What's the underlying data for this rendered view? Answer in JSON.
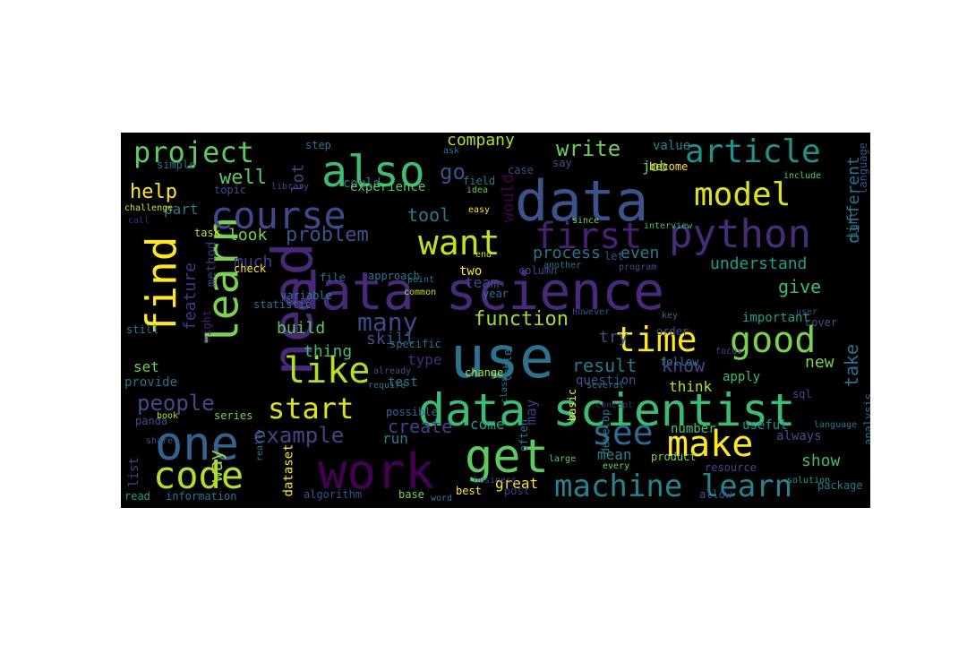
{
  "figure": {
    "background": "#000000",
    "colormap": "viridis",
    "words": [
      {
        "text": "data science",
        "color": "#472a7a"
      },
      {
        "text": "data",
        "color": "#3b528b"
      },
      {
        "text": "use",
        "color": "#2c728e"
      },
      {
        "text": "data scientist",
        "color": "#3cbb75"
      },
      {
        "text": "work",
        "color": "#440154"
      },
      {
        "text": "one",
        "color": "#33628d"
      },
      {
        "text": "need",
        "color": "#482878"
      },
      {
        "text": "also",
        "color": "#3dbc74"
      },
      {
        "text": "python",
        "color": "#472c7a"
      },
      {
        "text": "find",
        "color": "#fde725"
      },
      {
        "text": "learn",
        "color": "#7ad151"
      },
      {
        "text": "course",
        "color": "#3e4989"
      },
      {
        "text": "want",
        "color": "#c2df23"
      },
      {
        "text": "like",
        "color": "#b5de2b"
      },
      {
        "text": "get",
        "color": "#5ec962"
      },
      {
        "text": "make",
        "color": "#fde725"
      },
      {
        "text": "see",
        "color": "#31688e"
      },
      {
        "text": "time",
        "color": "#fde725"
      },
      {
        "text": "good",
        "color": "#7ad151"
      },
      {
        "text": "code",
        "color": "#b5de2b"
      },
      {
        "text": "model",
        "color": "#dde318"
      },
      {
        "text": "first",
        "color": "#482173"
      },
      {
        "text": "article",
        "color": "#21918c"
      },
      {
        "text": "project",
        "color": "#5ec962"
      },
      {
        "text": "machine learn",
        "color": "#26828e"
      },
      {
        "text": "start",
        "color": "#dde318"
      },
      {
        "text": "many",
        "color": "#3e4a89"
      },
      {
        "text": "go",
        "color": "#3b528b"
      },
      {
        "text": "example",
        "color": "#414487"
      },
      {
        "text": "people",
        "color": "#3e4c8a"
      },
      {
        "text": "function",
        "color": "#a0da39"
      },
      {
        "text": "write",
        "color": "#6ccd5a"
      },
      {
        "text": "company",
        "color": "#b5de2b"
      },
      {
        "text": "well",
        "color": "#5ec962"
      },
      {
        "text": "help",
        "color": "#fde725"
      },
      {
        "text": "problem",
        "color": "#3b528b"
      },
      {
        "text": "tool",
        "color": "#2a788e"
      },
      {
        "text": "look",
        "color": "#7ad151"
      },
      {
        "text": "different",
        "color": "#2c728e"
      },
      {
        "text": "take",
        "color": "#2c728e"
      },
      {
        "text": "create",
        "color": "#414487"
      },
      {
        "text": "way",
        "color": "#a0da39"
      },
      {
        "text": "show",
        "color": "#3dbc74"
      },
      {
        "text": "new",
        "color": "#7ad151"
      },
      {
        "text": "give",
        "color": "#3dbc74"
      },
      {
        "text": "result",
        "color": "#2a788e"
      },
      {
        "text": "know",
        "color": "#3e4a89"
      },
      {
        "text": "try",
        "color": "#3b528b"
      },
      {
        "text": "process",
        "color": "#2c728e"
      },
      {
        "text": "even",
        "color": "#2a788e"
      },
      {
        "text": "understand",
        "color": "#1f9e89"
      },
      {
        "text": "build",
        "color": "#5ec962"
      },
      {
        "text": "skill",
        "color": "#3b528b"
      },
      {
        "text": "thing",
        "color": "#3dbc74"
      },
      {
        "text": "much",
        "color": "#443a83"
      },
      {
        "text": "feature",
        "color": "#443983"
      },
      {
        "text": "part",
        "color": "#2a788e"
      },
      {
        "text": "team",
        "color": "#3e4989"
      },
      {
        "text": "two",
        "color": "#fde725"
      },
      {
        "text": "lot",
        "color": "#3e4989"
      },
      {
        "text": "would",
        "color": "#440154"
      },
      {
        "text": "run",
        "color": "#287c8e"
      },
      {
        "text": "set",
        "color": "#6ece58"
      },
      {
        "text": "list",
        "color": "#3e4989"
      },
      {
        "text": "type",
        "color": "#472d7b"
      },
      {
        "text": "mean",
        "color": "#26828e"
      },
      {
        "text": "come",
        "color": "#1fa187"
      },
      {
        "text": "great",
        "color": "#fde725"
      },
      {
        "text": "may",
        "color": "#443983"
      },
      {
        "text": "think",
        "color": "#b5de2b"
      },
      {
        "text": "job",
        "color": "#7ad151"
      },
      {
        "text": "value",
        "color": "#26828e"
      },
      {
        "text": "could",
        "color": "#2a788e"
      },
      {
        "text": "experience",
        "color": "#5ec962"
      },
      {
        "text": "provide",
        "color": "#2c728e"
      },
      {
        "text": "might",
        "color": "#482173"
      },
      {
        "text": "method",
        "color": "#453781"
      },
      {
        "text": "test",
        "color": "#2a788e"
      },
      {
        "text": "question",
        "color": "#3b528b"
      },
      {
        "text": "important",
        "color": "#1f9e89"
      },
      {
        "text": "apply",
        "color": "#3dbc74"
      },
      {
        "text": "follow",
        "color": "#2a788e"
      },
      {
        "text": "number",
        "color": "#4ac16d"
      },
      {
        "text": "useful",
        "color": "#21918c"
      },
      {
        "text": "always",
        "color": "#3b528b"
      },
      {
        "text": "package",
        "color": "#2a788e"
      },
      {
        "text": "analysis",
        "color": "#2c728e"
      },
      {
        "text": "check",
        "color": "#fde725"
      },
      {
        "text": "statistic",
        "color": "#2c728e"
      },
      {
        "text": "variable",
        "color": "#2a788e"
      },
      {
        "text": "approach",
        "color": "#2a788e"
      },
      {
        "text": "step",
        "color": "#2a788e"
      },
      {
        "text": "simple",
        "color": "#2c728e"
      },
      {
        "text": "topic",
        "color": "#3e4c8a"
      },
      {
        "text": "challenge",
        "color": "#d2e21b"
      },
      {
        "text": "call",
        "color": "#472d7b"
      },
      {
        "text": "task",
        "color": "#c2df23"
      },
      {
        "text": "still",
        "color": "#2a788e"
      },
      {
        "text": "panda",
        "color": "#3b528b"
      },
      {
        "text": "book",
        "color": "#c2df23"
      },
      {
        "text": "series",
        "color": "#7ad151"
      },
      {
        "text": "read",
        "color": "#1f9e89"
      },
      {
        "text": "information",
        "color": "#2a788e"
      },
      {
        "text": "dataset",
        "color": "#fde725"
      },
      {
        "text": "algorithm",
        "color": "#3b528b"
      },
      {
        "text": "base",
        "color": "#7ad151"
      },
      {
        "text": "best",
        "color": "#fde725"
      },
      {
        "text": "post",
        "color": "#443983"
      },
      {
        "text": "word",
        "color": "#2a788e"
      },
      {
        "text": "solution",
        "color": "#1f9e89"
      },
      {
        "text": "resource",
        "color": "#3e4c8a"
      },
      {
        "text": "product",
        "color": "#7ad151"
      },
      {
        "text": "every",
        "color": "#7ad151"
      },
      {
        "text": "large",
        "color": "#5ec962"
      },
      {
        "text": "often",
        "color": "#2c728e"
      },
      {
        "text": "develop",
        "color": "#2a788e"
      },
      {
        "text": "possible",
        "color": "#31688e"
      },
      {
        "text": "basic",
        "color": "#fde725"
      },
      {
        "text": "concept",
        "color": "#482878"
      },
      {
        "text": "allow",
        "color": "#3b528b"
      },
      {
        "text": "sql",
        "color": "#3e4c8a"
      },
      {
        "text": "focus",
        "color": "#3e4c8a"
      },
      {
        "text": "order",
        "color": "#3b528b"
      },
      {
        "text": "however",
        "color": "#3b528b"
      },
      {
        "text": "key",
        "color": "#2c728e"
      },
      {
        "text": "user",
        "color": "#414487"
      },
      {
        "text": "cover",
        "color": "#3b528b"
      },
      {
        "text": "common",
        "color": "#c2df23"
      },
      {
        "text": "file",
        "color": "#2c728e"
      },
      {
        "text": "point",
        "color": "#2a788e"
      },
      {
        "text": "column",
        "color": "#3e4989"
      },
      {
        "text": "end",
        "color": "#c2df23"
      },
      {
        "text": "year",
        "color": "#2c728e"
      },
      {
        "text": "another",
        "color": "#2c728e"
      },
      {
        "text": "program",
        "color": "#3b528b"
      },
      {
        "text": "let",
        "color": "#3b528b"
      },
      {
        "text": "since",
        "color": "#7ad151"
      },
      {
        "text": "interview",
        "color": "#3dbc74"
      },
      {
        "text": "idea",
        "color": "#5ec962"
      },
      {
        "text": "easy",
        "color": "#fde725"
      },
      {
        "text": "ask",
        "color": "#2c728e"
      },
      {
        "text": "field",
        "color": "#2a788e"
      },
      {
        "text": "case",
        "color": "#3b528b"
      },
      {
        "text": "say",
        "color": "#3b528b"
      },
      {
        "text": "become",
        "color": "#fde725"
      },
      {
        "text": "language",
        "color": "#3b528b"
      },
      {
        "text": "right",
        "color": "#2a788e"
      },
      {
        "text": "include",
        "color": "#5ec962"
      },
      {
        "text": "library",
        "color": "#3e4989"
      },
      {
        "text": "change",
        "color": "#b5de2b"
      },
      {
        "text": "table",
        "color": "#2a788e"
      },
      {
        "text": "already",
        "color": "#3b528b"
      },
      {
        "text": "specific",
        "color": "#2c728e"
      },
      {
        "text": "require",
        "color": "#2a788e"
      },
      {
        "text": "really",
        "color": "#2a788e"
      },
      {
        "text": "share",
        "color": "#3b528b"
      },
      {
        "text": "business",
        "color": "#3e4989"
      },
      {
        "text": "class",
        "color": "#2a788e"
      },
      {
        "text": "several",
        "color": "#2a788e"
      },
      {
        "text": "language",
        "color": "#2a788e"
      },
      {
        "text": "actually",
        "color": "#2c728e"
      },
      {
        "text": "different",
        "color": "#2a788e"
      }
    ]
  }
}
